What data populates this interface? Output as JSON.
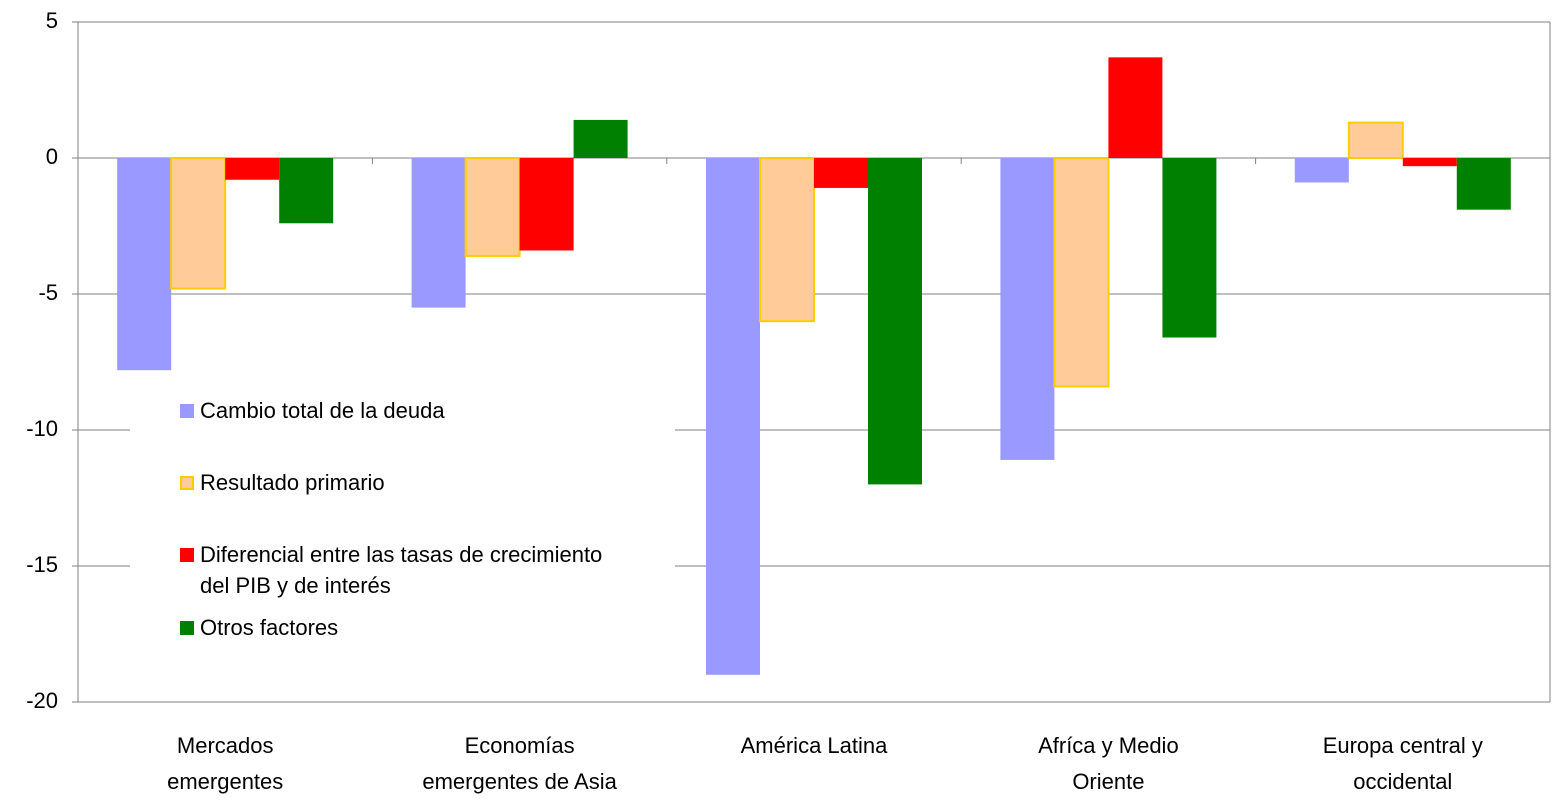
{
  "chart_data": {
    "type": "bar",
    "categories": [
      "Mercados emergentes",
      "Economías emergentes de Asia",
      "América Latina",
      "Afríca y Medio Oriente",
      "Europa central y occidental"
    ],
    "series": [
      {
        "name": "Cambio total de la deuda",
        "color": "#9999ff",
        "values": [
          -7.8,
          -5.5,
          -19.0,
          -11.1,
          -0.9
        ]
      },
      {
        "name": "Resultado primario",
        "color": "#ffcc99",
        "border": "#ffcc00",
        "values": [
          -4.8,
          -3.6,
          -6.0,
          -8.4,
          1.3
        ]
      },
      {
        "name": "Diferencial entre las tasas de crecimiento del PIB y de interés",
        "color": "#ff0000",
        "values": [
          -0.8,
          -3.4,
          -1.1,
          3.7,
          -0.3
        ]
      },
      {
        "name": "Otros factores",
        "color": "#008000",
        "values": [
          -2.4,
          1.4,
          -12.0,
          -6.6,
          -1.9
        ]
      }
    ],
    "ylim": [
      -20,
      5
    ],
    "yticks": [
      -20,
      -15,
      -10,
      -5,
      0,
      5
    ],
    "grid": true,
    "legend": "left"
  }
}
